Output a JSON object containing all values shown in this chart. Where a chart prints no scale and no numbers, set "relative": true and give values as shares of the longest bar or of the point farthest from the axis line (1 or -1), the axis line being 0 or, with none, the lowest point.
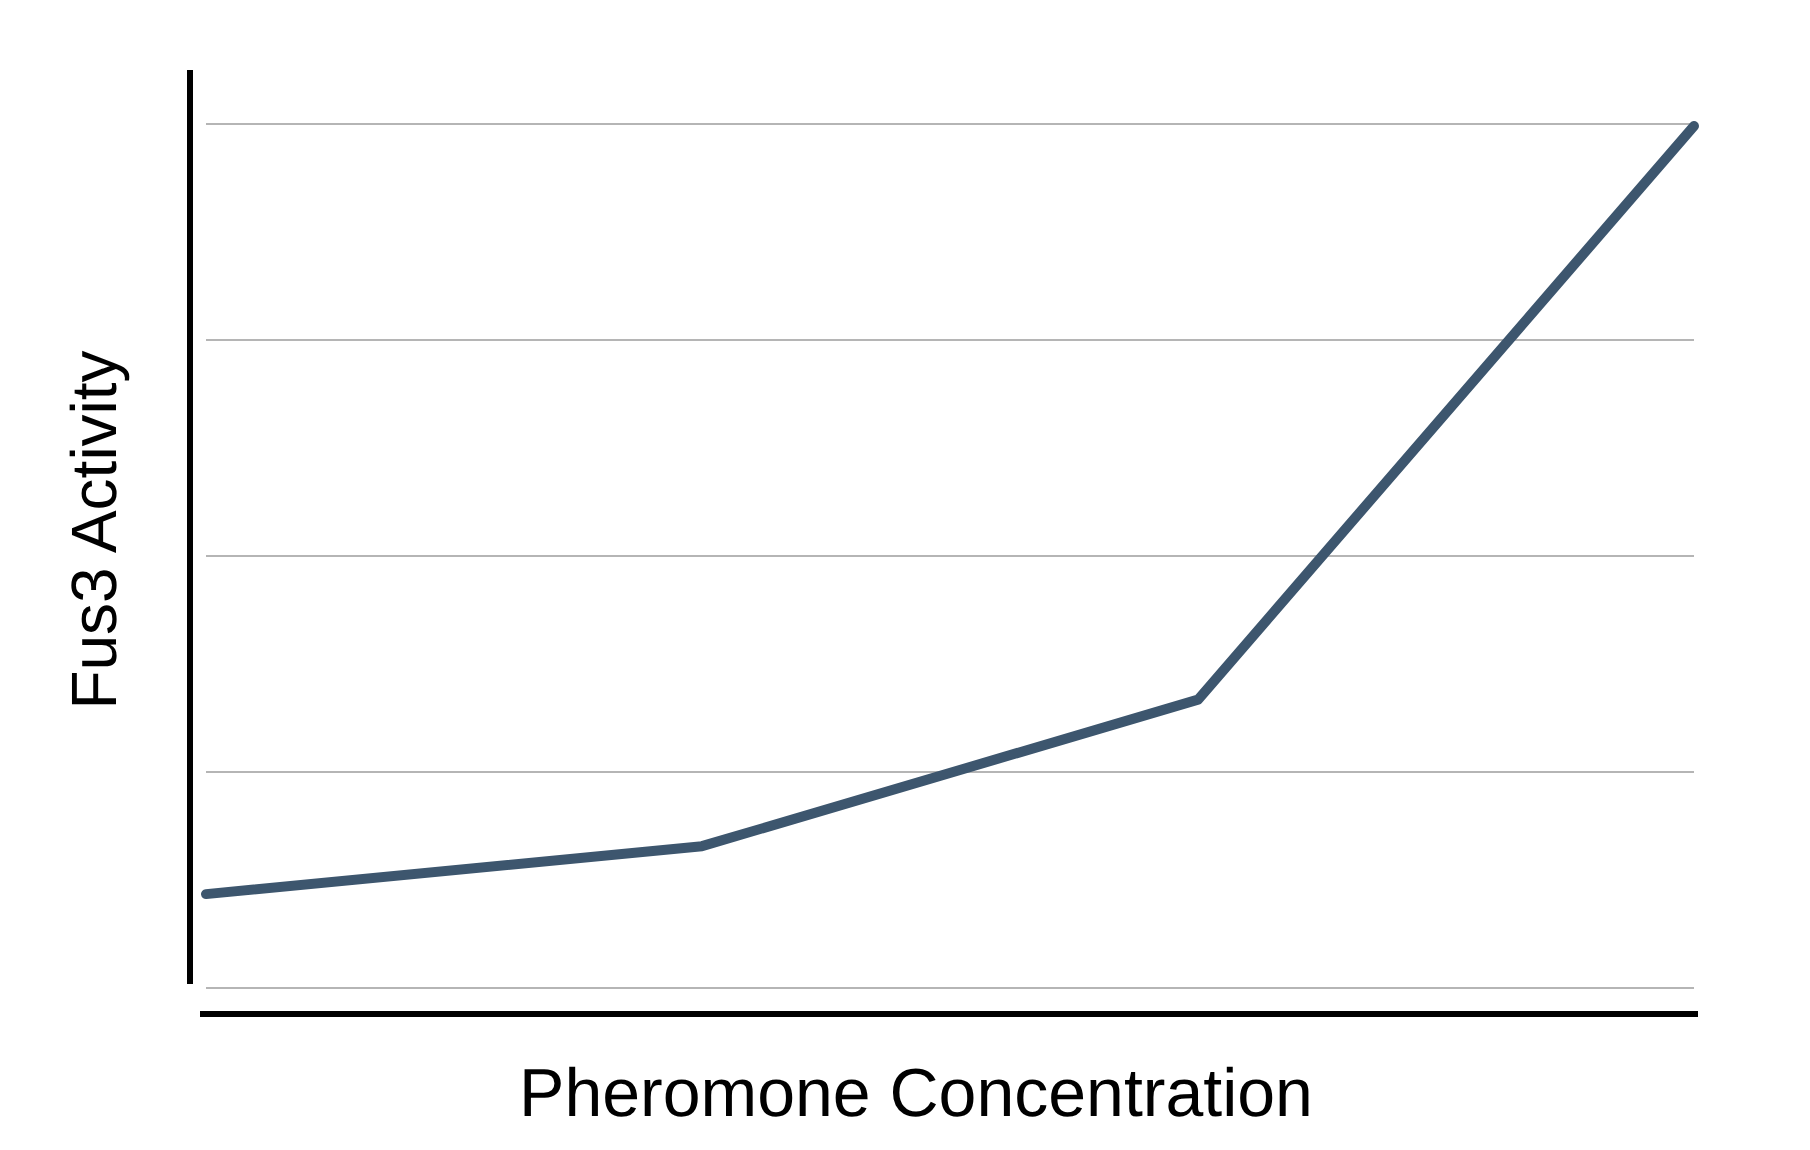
{
  "chart_data": {
    "type": "line",
    "relative": true,
    "xlabel": "Pheromone Concentration",
    "ylabel": "Fus3 Activity",
    "categories": [
      null,
      null,
      null,
      null
    ],
    "series": [
      {
        "color": "#3d566e",
        "values": [
          0.135,
          0.189,
          0.354,
          1
        ]
      }
    ],
    "grid": "y",
    "marker": "none",
    "line_style": "solid"
  }
}
